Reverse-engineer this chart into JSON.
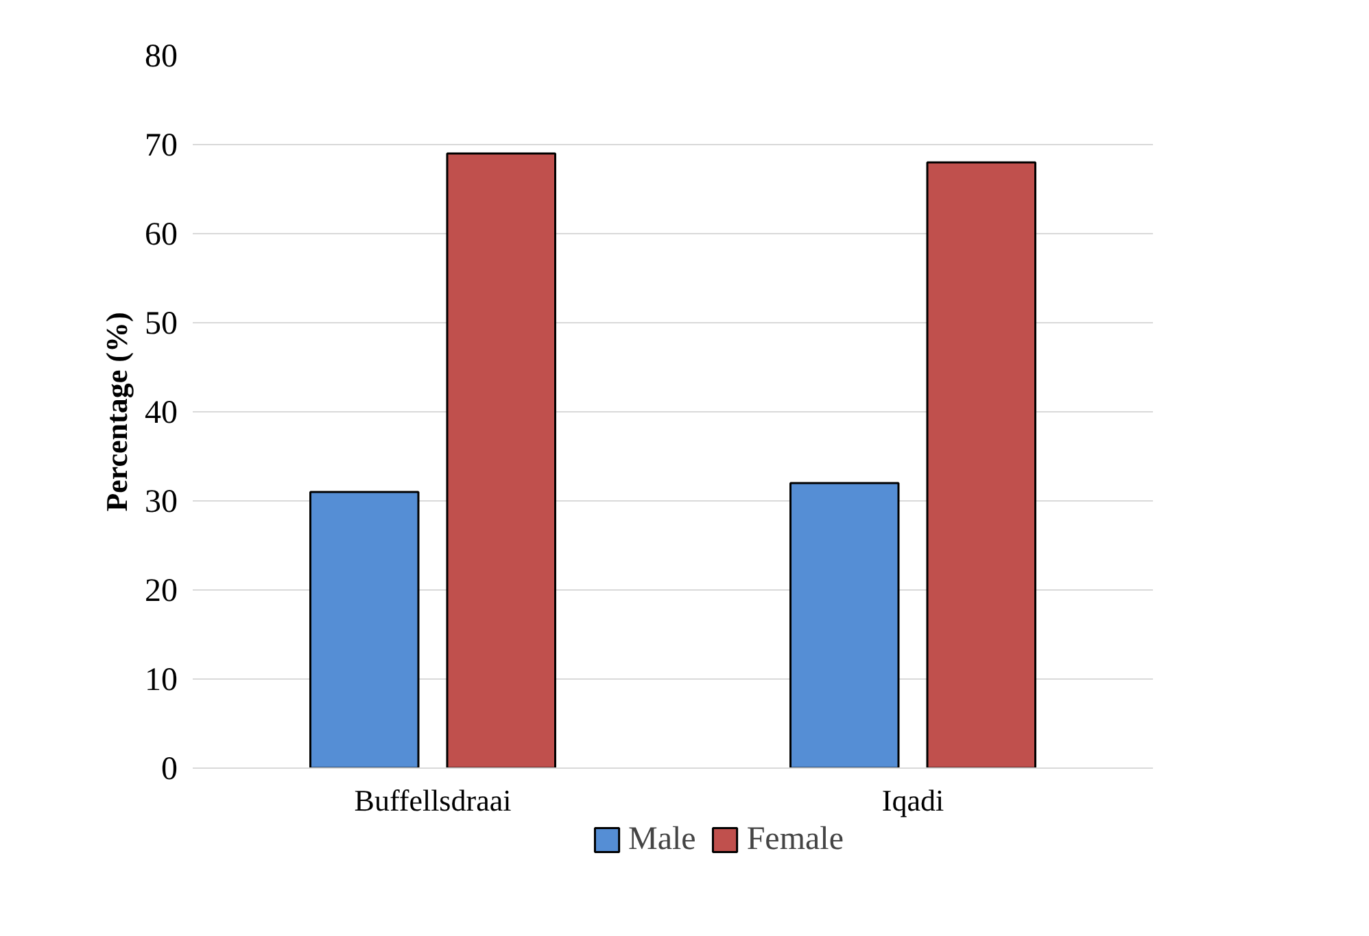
{
  "chart_data": {
    "type": "bar",
    "ylabel": "Percentage (%)",
    "categories": [
      "Buffellsdraai",
      "Iqadi"
    ],
    "series": [
      {
        "name": "Male",
        "color": "#558ed5",
        "values": [
          31,
          32
        ]
      },
      {
        "name": "Female",
        "color": "#c0504d",
        "values": [
          69,
          68
        ]
      }
    ],
    "ylim": [
      0,
      80
    ],
    "yticks": [
      0,
      10,
      20,
      30,
      40,
      50,
      60,
      70,
      80
    ],
    "grid": "y",
    "legend": "bottom"
  }
}
